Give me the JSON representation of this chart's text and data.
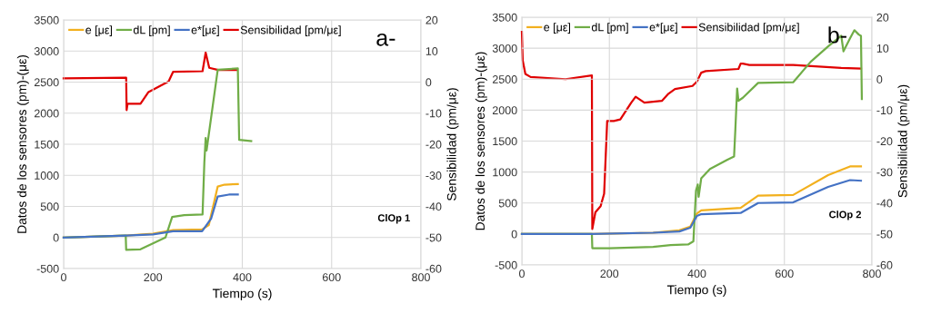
{
  "chart_data": [
    {
      "type": "line",
      "xlabel": "Tiempo (s)",
      "ylabel": "Datos de los sensores (pm)-(με)",
      "y2label": "Sensibilidad (pm/με)",
      "annotations": [
        "a-",
        "ClOp 1"
      ],
      "xlim": [
        0,
        800
      ],
      "xticks": [
        0,
        200,
        400,
        600,
        800
      ],
      "ylim": [
        -500,
        3500
      ],
      "yticks": [
        -500,
        0,
        500,
        1000,
        1500,
        2000,
        2500,
        3000,
        3500
      ],
      "y2lim": [
        -60,
        20
      ],
      "y2ticks": [
        -60,
        -50,
        -40,
        -30,
        -20,
        -10,
        0,
        10,
        20
      ],
      "grid": true,
      "legend": "top left",
      "marker": "none",
      "line_style": "solid",
      "series": [
        {
          "name": "e [με]",
          "color": "#f2b01e",
          "x": [
            0,
            140,
            200,
            245,
            310,
            325,
            345,
            360,
            390
          ],
          "values": [
            0,
            30,
            60,
            120,
            130,
            200,
            820,
            850,
            860
          ]
        },
        {
          "name": "dL [pm]",
          "color": "#70ad47",
          "x": [
            0,
            139,
            140,
            172,
            228,
            243,
            270,
            311,
            315,
            318,
            320,
            345,
            390,
            393,
            420
          ],
          "values": [
            0,
            30,
            -200,
            -190,
            0,
            330,
            360,
            370,
            1200,
            1600,
            1400,
            2700,
            2720,
            1570,
            1550
          ]
        },
        {
          "name": "e*[με]",
          "color": "#4472c4",
          "x": [
            0,
            140,
            200,
            245,
            310,
            330,
            345,
            370,
            390
          ],
          "values": [
            0,
            30,
            50,
            100,
            100,
            300,
            660,
            690,
            690
          ]
        },
        {
          "name": "Sensibilidad [pm/με]",
          "color": "#e00000",
          "axis": "y2",
          "x": [
            0,
            140,
            141,
            143,
            172,
            190,
            235,
            245,
            311,
            318,
            326,
            346,
            387
          ],
          "values": [
            1.2,
            1.4,
            -9,
            -7,
            -7,
            -3.2,
            0.2,
            3.3,
            3.5,
            9.5,
            4.6,
            3.9,
            3.9
          ]
        }
      ]
    },
    {
      "type": "line",
      "xlabel": "Tiempo (s)",
      "ylabel": "Datos de los sensores (pm)-(με)",
      "y2label": "Sensibilidad (pm/με)",
      "annotations": [
        "b-",
        "ClOp 2"
      ],
      "xlim": [
        0,
        800
      ],
      "xticks": [
        0,
        200,
        400,
        600,
        800
      ],
      "ylim": [
        -500,
        3500
      ],
      "yticks": [
        -500,
        0,
        500,
        1000,
        1500,
        2000,
        2500,
        3000,
        3500
      ],
      "y2lim": [
        -60,
        20
      ],
      "y2ticks": [
        -60,
        -50,
        -40,
        -30,
        -20,
        -10,
        0,
        10,
        20
      ],
      "grid": true,
      "legend": "top left",
      "marker": "none",
      "line_style": "solid",
      "series": [
        {
          "name": "e [με]",
          "color": "#f2b01e",
          "x": [
            0,
            160,
            300,
            360,
            385,
            400,
            410,
            500,
            540,
            620,
            700,
            750,
            775
          ],
          "values": [
            0,
            0,
            20,
            60,
            120,
            330,
            380,
            420,
            620,
            630,
            950,
            1090,
            1090
          ]
        },
        {
          "name": "dL [pm]",
          "color": "#70ad47",
          "x": [
            0,
            160,
            161,
            200,
            300,
            340,
            380,
            392,
            398,
            402,
            404,
            410,
            430,
            470,
            485,
            488,
            492,
            495,
            505,
            540,
            620,
            660,
            700,
            730,
            735,
            750,
            760,
            770,
            775,
            777
          ],
          "values": [
            0,
            0,
            -230,
            -230,
            -210,
            -180,
            -170,
            -120,
            700,
            800,
            600,
            900,
            1050,
            1200,
            1250,
            1700,
            2350,
            2150,
            2200,
            2440,
            2450,
            2780,
            3030,
            3200,
            2950,
            3160,
            3290,
            3220,
            3200,
            2180
          ]
        },
        {
          "name": "e*[με]",
          "color": "#4472c4",
          "x": [
            0,
            160,
            300,
            360,
            385,
            400,
            410,
            500,
            540,
            620,
            700,
            750,
            775
          ],
          "values": [
            0,
            0,
            20,
            40,
            100,
            290,
            320,
            340,
            500,
            510,
            760,
            870,
            860
          ]
        },
        {
          "name": "Sensibilidad [pm/με]",
          "color": "#e00000",
          "axis": "y2",
          "x": [
            0,
            2,
            8,
            20,
            100,
            160,
            161,
            168,
            180,
            188,
            195,
            210,
            225,
            250,
            260,
            280,
            320,
            335,
            350,
            390,
            400,
            410,
            420,
            495,
            500,
            505,
            520,
            620,
            730,
            775
          ],
          "values": [
            15.3,
            6,
            1.7,
            0.7,
            0,
            1.2,
            -48.4,
            -43,
            -41,
            -37,
            -13.5,
            -13.5,
            -13,
            -7.6,
            -5.7,
            -7.6,
            -7,
            -4.7,
            -3.2,
            -2.2,
            -0.8,
            2.1,
            2.6,
            3.3,
            5,
            5,
            4.6,
            4.6,
            3.6,
            3.4
          ]
        }
      ]
    }
  ]
}
